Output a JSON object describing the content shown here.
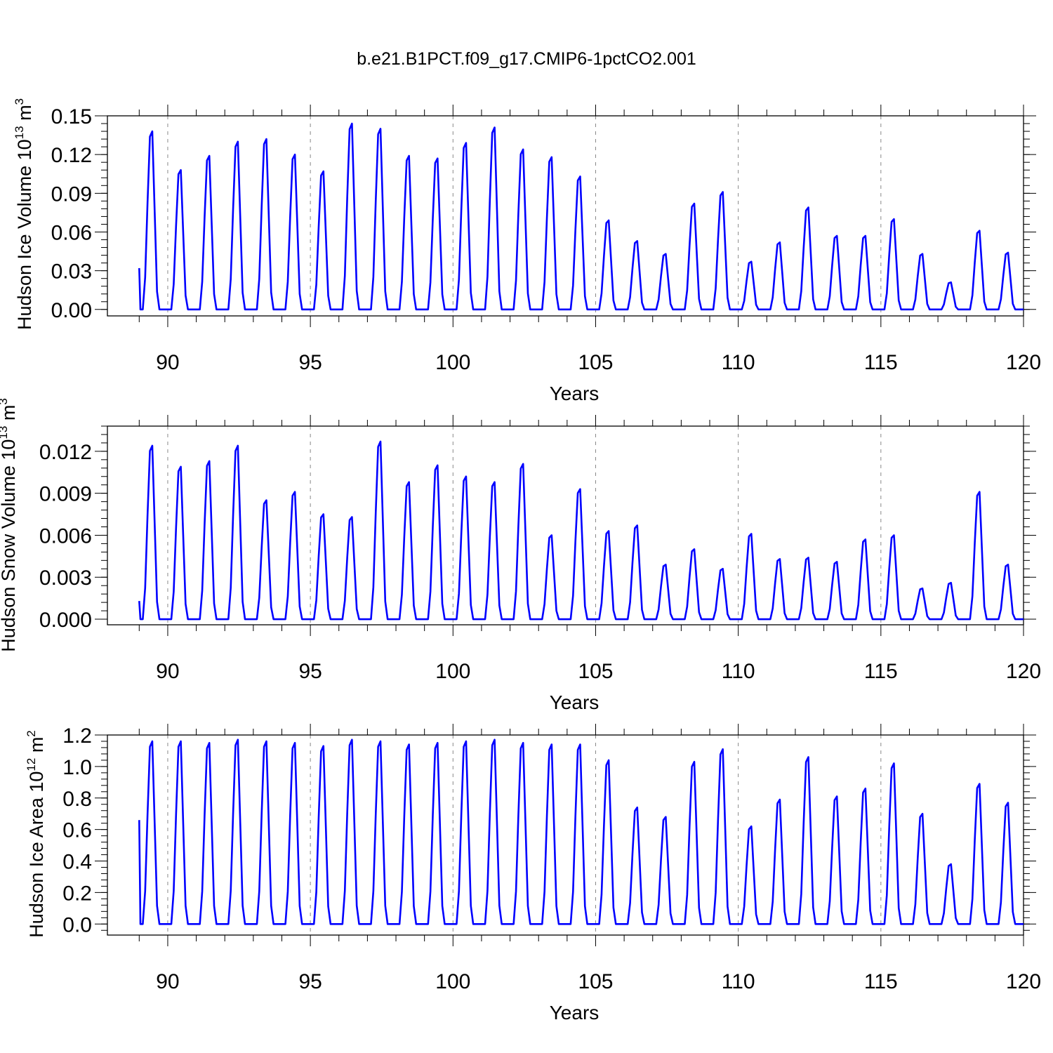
{
  "title": "b.e21.B1PCT.f09_g17.CMIP6-1pctCO2.001",
  "colors": {
    "line": "#0000ff",
    "axis": "#000000",
    "grid": "#888888"
  },
  "chart_data": [
    {
      "type": "line",
      "ylabel": {
        "text": "Hudson Ice Volume 10",
        "exp": "13",
        "unit": " m",
        "unit_exp": "3"
      },
      "xlabel": "Years",
      "xlim": [
        88.5,
        120
      ],
      "xticks": [
        "90",
        "95",
        "100",
        "105",
        "110",
        "115",
        "120"
      ],
      "ylim": [
        -0.005,
        0.15
      ],
      "yticks": [
        "0.00",
        "0.03",
        "0.06",
        "0.09",
        "0.12",
        "0.15"
      ],
      "grid": "dashed vertical at major x ticks",
      "series": [
        {
          "peaks": [
            0.138,
            0.108,
            0.119,
            0.13,
            0.132,
            0.12,
            0.107,
            0.144,
            0.14,
            0.119,
            0.117,
            0.129,
            0.141,
            0.124,
            0.118,
            0.103,
            0.069,
            0.053,
            0.043,
            0.082,
            0.091,
            0.037,
            0.052,
            0.079,
            0.057,
            0.057,
            0.07,
            0.043,
            0.021,
            0.061,
            0.044
          ],
          "start_value": 0.032
        }
      ]
    },
    {
      "type": "line",
      "ylabel": {
        "text": "Hudson Snow Volume 10",
        "exp": "13",
        "unit": " m",
        "unit_exp": "3"
      },
      "xlabel": "Years",
      "xlim": [
        88.5,
        120
      ],
      "xticks": [
        "90",
        "95",
        "100",
        "105",
        "110",
        "115",
        "120"
      ],
      "ylim": [
        -0.0004,
        0.0138
      ],
      "yticks": [
        "0.000",
        "0.003",
        "0.006",
        "0.009",
        "0.012"
      ],
      "grid": "dashed vertical at major x ticks",
      "series": [
        {
          "peaks": [
            0.0124,
            0.0109,
            0.0113,
            0.0124,
            0.0085,
            0.0091,
            0.0075,
            0.0073,
            0.0127,
            0.0098,
            0.011,
            0.0102,
            0.0098,
            0.0111,
            0.006,
            0.0093,
            0.0063,
            0.0067,
            0.0039,
            0.005,
            0.0036,
            0.0061,
            0.0043,
            0.0044,
            0.0041,
            0.0057,
            0.006,
            0.0022,
            0.0026,
            0.0091,
            0.0039
          ],
          "start_value": 0.0013
        }
      ]
    },
    {
      "type": "line",
      "ylabel": {
        "text": "Hudson Ice Area 10",
        "exp": "12",
        "unit": " m",
        "unit_exp": "2"
      },
      "xlabel": "Years",
      "xlim": [
        88.5,
        120
      ],
      "xticks": [
        "90",
        "95",
        "100",
        "105",
        "110",
        "115",
        "120"
      ],
      "ylim": [
        -0.07,
        1.2
      ],
      "yticks": [
        "0.0",
        "0.2",
        "0.4",
        "0.6",
        "0.8",
        "1.0",
        "1.2"
      ],
      "grid": "dashed vertical at major x ticks",
      "series": [
        {
          "peaks": [
            1.16,
            1.16,
            1.15,
            1.17,
            1.16,
            1.15,
            1.13,
            1.17,
            1.16,
            1.14,
            1.15,
            1.16,
            1.17,
            1.15,
            1.14,
            1.14,
            1.04,
            0.74,
            0.68,
            1.03,
            1.11,
            0.62,
            0.79,
            1.06,
            0.81,
            0.86,
            1.02,
            0.7,
            0.38,
            0.89,
            0.77
          ],
          "start_value": 0.66
        }
      ]
    }
  ]
}
